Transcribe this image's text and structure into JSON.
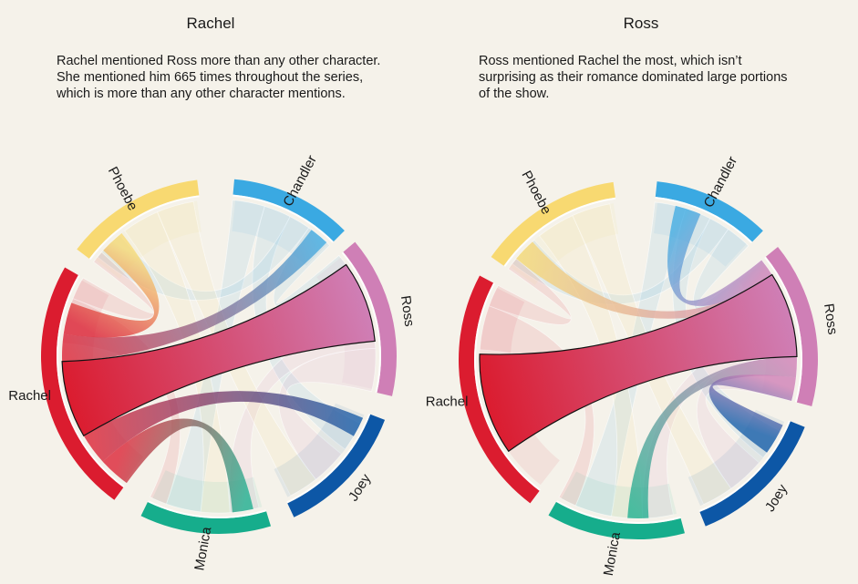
{
  "panels": [
    {
      "title": "Rachel",
      "description_lines": [
        "Rachel mentioned Ross more than any other character.",
        "She mentioned him 665 times throughout the series,",
        "which is more than any other character mentions."
      ]
    },
    {
      "title": "Ross",
      "description_lines": [
        "Ross mentioned Rachel the most, which isn’t",
        "surprising as their romance dominated large portions",
        "of the show."
      ]
    }
  ],
  "chart_data": [
    {
      "type": "chord",
      "title": "Rachel",
      "groups": [
        {
          "name": "Chandler",
          "color": "#3aa9e2"
        },
        {
          "name": "Ross",
          "color": "#cf7fb6"
        },
        {
          "name": "Joey",
          "color": "#0d57a6"
        },
        {
          "name": "Monica",
          "color": "#16ad8c"
        },
        {
          "name": "Rachel",
          "color": "#db1c2f"
        },
        {
          "name": "Phoebe",
          "color": "#f8d971"
        }
      ],
      "highlight": "Rachel",
      "highlight_ribbon": {
        "source": "Rachel",
        "target": "Ross",
        "value": 665
      }
    },
    {
      "type": "chord",
      "title": "Ross",
      "groups": [
        {
          "name": "Chandler",
          "color": "#3aa9e2"
        },
        {
          "name": "Ross",
          "color": "#cf7fb6"
        },
        {
          "name": "Joey",
          "color": "#0d57a6"
        },
        {
          "name": "Monica",
          "color": "#16ad8c"
        },
        {
          "name": "Rachel",
          "color": "#db1c2f"
        },
        {
          "name": "Phoebe",
          "color": "#f8d971"
        }
      ],
      "highlight": "Ross",
      "highlight_ribbon": {
        "source": "Ross",
        "target": "Rachel"
      }
    }
  ]
}
